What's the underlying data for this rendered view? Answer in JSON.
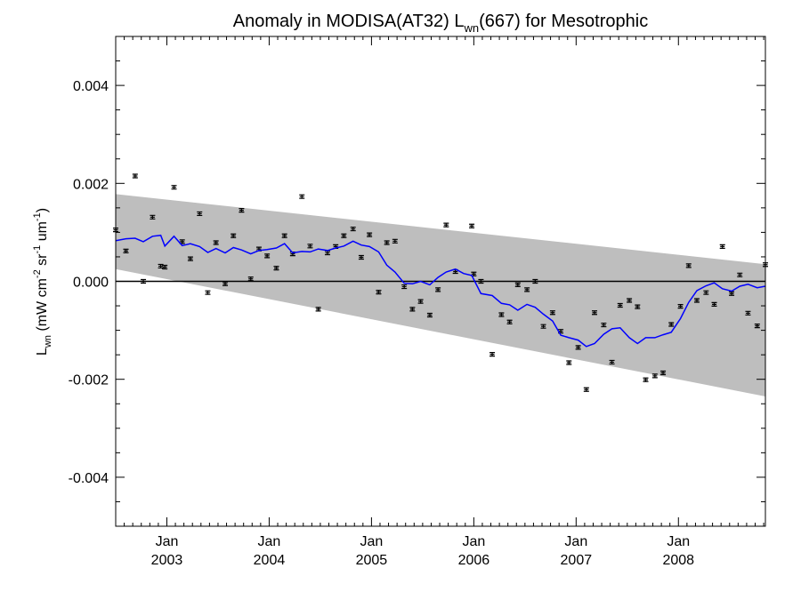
{
  "chart_data": {
    "type": "line",
    "title": {
      "prefix": "Anomaly in MODISA(AT32) L",
      "subscript": "wn",
      "suffix": "(667) for Mesotrophic"
    },
    "ylabel": {
      "L": "L",
      "wn": "wn",
      "open": " (mW cm",
      "sup1": "-2",
      "mid": " sr",
      "sup2": "-1",
      "um": " um",
      "sup3": "-1",
      "close": ")"
    },
    "xlim": [
      2002.5,
      2008.85
    ],
    "ylim": [
      -0.005,
      0.005
    ],
    "y_ticks": [
      {
        "value": -0.004,
        "label": "-0.004"
      },
      {
        "value": -0.002,
        "label": "-0.002"
      },
      {
        "value": 0.0,
        "label": "0.000"
      },
      {
        "value": 0.002,
        "label": "0.002"
      },
      {
        "value": 0.004,
        "label": "0.004"
      }
    ],
    "x_ticks": [
      {
        "value": 2003.0,
        "month": "Jan",
        "year": "2003"
      },
      {
        "value": 2004.0,
        "month": "Jan",
        "year": "2004"
      },
      {
        "value": 2005.0,
        "month": "Jan",
        "year": "2005"
      },
      {
        "value": 2006.0,
        "month": "Jan",
        "year": "2006"
      },
      {
        "value": 2007.0,
        "month": "Jan",
        "year": "2007"
      },
      {
        "value": 2008.0,
        "month": "Jan",
        "year": "2008"
      }
    ],
    "band": {
      "x": [
        2002.5,
        2008.85
      ],
      "upper": [
        0.00178,
        0.00035
      ],
      "lower": [
        0.00025,
        -0.00235
      ]
    },
    "reference_line": 0.0,
    "series": [
      {
        "kind": "points",
        "points": [
          [
            2002.5,
            0.00105
          ],
          [
            2002.6,
            0.00062
          ],
          [
            2002.69,
            0.00215
          ],
          [
            2002.77,
            0.0
          ],
          [
            2002.86,
            0.00131
          ],
          [
            2002.94,
            0.00031
          ],
          [
            2002.98,
            0.00029
          ],
          [
            2003.07,
            0.00192
          ],
          [
            2003.15,
            0.00081
          ],
          [
            2003.23,
            0.00046
          ],
          [
            2003.32,
            0.00138
          ],
          [
            2003.4,
            -0.00023
          ],
          [
            2003.48,
            0.00079
          ],
          [
            2003.57,
            -5e-05
          ],
          [
            2003.65,
            0.00093
          ],
          [
            2003.73,
            0.00145
          ],
          [
            2003.82,
            5e-05
          ],
          [
            2003.9,
            0.00066
          ],
          [
            2003.98,
            0.00052
          ],
          [
            2004.07,
            0.00027
          ],
          [
            2004.15,
            0.00093
          ],
          [
            2004.23,
            0.00056
          ],
          [
            2004.32,
            0.00173
          ],
          [
            2004.4,
            0.00072
          ],
          [
            2004.48,
            -0.00057
          ],
          [
            2004.57,
            0.00058
          ],
          [
            2004.65,
            0.00071
          ],
          [
            2004.73,
            0.00093
          ],
          [
            2004.82,
            0.00107
          ],
          [
            2004.9,
            0.00049
          ],
          [
            2004.98,
            0.00095
          ],
          [
            2005.07,
            -0.00022
          ],
          [
            2005.15,
            0.00079
          ],
          [
            2005.23,
            0.00082
          ],
          [
            2005.32,
            -0.00011
          ],
          [
            2005.4,
            -0.00057
          ],
          [
            2005.48,
            -0.00041
          ],
          [
            2005.57,
            -0.00069
          ],
          [
            2005.65,
            -0.00017
          ],
          [
            2005.73,
            0.00115
          ],
          [
            2005.82,
            0.0002
          ],
          [
            2005.98,
            0.00113
          ],
          [
            2006.0,
            0.00015
          ],
          [
            2006.07,
            0.0
          ],
          [
            2006.18,
            -0.00149
          ],
          [
            2006.27,
            -0.00068
          ],
          [
            2006.35,
            -0.00083
          ],
          [
            2006.43,
            -7e-05
          ],
          [
            2006.52,
            -0.00017
          ],
          [
            2006.6,
            0.0
          ],
          [
            2006.68,
            -0.00092
          ],
          [
            2006.77,
            -0.00064
          ],
          [
            2006.85,
            -0.00102
          ],
          [
            2006.93,
            -0.00166
          ],
          [
            2007.02,
            -0.00135
          ],
          [
            2007.1,
            -0.00221
          ],
          [
            2007.18,
            -0.00064
          ],
          [
            2007.27,
            -0.00089
          ],
          [
            2007.35,
            -0.00165
          ],
          [
            2007.43,
            -0.00049
          ],
          [
            2007.52,
            -0.00039
          ],
          [
            2007.6,
            -0.00052
          ],
          [
            2007.68,
            -0.00201
          ],
          [
            2007.77,
            -0.00193
          ],
          [
            2007.85,
            -0.00187
          ],
          [
            2007.93,
            -0.00088
          ],
          [
            2008.02,
            -0.00051
          ],
          [
            2008.1,
            0.00032
          ],
          [
            2008.18,
            -0.00039
          ],
          [
            2008.27,
            -0.00023
          ],
          [
            2008.35,
            -0.00047
          ],
          [
            2008.43,
            0.00071
          ],
          [
            2008.52,
            -0.00025
          ],
          [
            2008.6,
            0.00013
          ],
          [
            2008.68,
            -0.00065
          ],
          [
            2008.77,
            -0.00091
          ],
          [
            2008.85,
            0.00034
          ]
        ]
      },
      {
        "kind": "line",
        "color": "#0000ff",
        "points": [
          [
            2002.5,
            0.00083
          ],
          [
            2002.6,
            0.00087
          ],
          [
            2002.69,
            0.00088
          ],
          [
            2002.77,
            0.00081
          ],
          [
            2002.86,
            0.00092
          ],
          [
            2002.94,
            0.00094
          ],
          [
            2002.98,
            0.00072
          ],
          [
            2003.07,
            0.00092
          ],
          [
            2003.15,
            0.00073
          ],
          [
            2003.23,
            0.00077
          ],
          [
            2003.32,
            0.00071
          ],
          [
            2003.4,
            0.00059
          ],
          [
            2003.48,
            0.00067
          ],
          [
            2003.57,
            0.00058
          ],
          [
            2003.65,
            0.00069
          ],
          [
            2003.73,
            0.00064
          ],
          [
            2003.82,
            0.00056
          ],
          [
            2003.9,
            0.00063
          ],
          [
            2003.98,
            0.00065
          ],
          [
            2004.07,
            0.00068
          ],
          [
            2004.15,
            0.00077
          ],
          [
            2004.23,
            0.00058
          ],
          [
            2004.32,
            0.00061
          ],
          [
            2004.4,
            0.0006
          ],
          [
            2004.48,
            0.00066
          ],
          [
            2004.57,
            0.00063
          ],
          [
            2004.65,
            0.00068
          ],
          [
            2004.73,
            0.00072
          ],
          [
            2004.82,
            0.00082
          ],
          [
            2004.9,
            0.00074
          ],
          [
            2004.98,
            0.00071
          ],
          [
            2005.07,
            0.0006
          ],
          [
            2005.15,
            0.00033
          ],
          [
            2005.23,
            0.00019
          ],
          [
            2005.32,
            -4e-05
          ],
          [
            2005.4,
            -5e-05
          ],
          [
            2005.48,
            0.0
          ],
          [
            2005.57,
            -7e-05
          ],
          [
            2005.65,
            8e-05
          ],
          [
            2005.73,
            0.00019
          ],
          [
            2005.82,
            0.00025
          ],
          [
            2005.9,
            0.00016
          ],
          [
            2005.98,
            0.00012
          ],
          [
            2006.07,
            -0.00025
          ],
          [
            2006.18,
            -0.00029
          ],
          [
            2006.27,
            -0.00045
          ],
          [
            2006.35,
            -0.00048
          ],
          [
            2006.43,
            -0.00059
          ],
          [
            2006.52,
            -0.00047
          ],
          [
            2006.6,
            -0.00053
          ],
          [
            2006.68,
            -0.00067
          ],
          [
            2006.77,
            -0.00081
          ],
          [
            2006.85,
            -0.0011
          ],
          [
            2006.93,
            -0.00115
          ],
          [
            2007.02,
            -0.0012
          ],
          [
            2007.1,
            -0.00133
          ],
          [
            2007.18,
            -0.00127
          ],
          [
            2007.27,
            -0.00108
          ],
          [
            2007.35,
            -0.00097
          ],
          [
            2007.43,
            -0.00095
          ],
          [
            2007.52,
            -0.00115
          ],
          [
            2007.6,
            -0.00127
          ],
          [
            2007.68,
            -0.00115
          ],
          [
            2007.77,
            -0.00115
          ],
          [
            2007.85,
            -0.00109
          ],
          [
            2007.93,
            -0.00104
          ],
          [
            2008.02,
            -0.00076
          ],
          [
            2008.1,
            -0.00043
          ],
          [
            2008.18,
            -0.00019
          ],
          [
            2008.27,
            -9e-05
          ],
          [
            2008.35,
            -3e-05
          ],
          [
            2008.43,
            -0.00015
          ],
          [
            2008.52,
            -0.0002
          ],
          [
            2008.6,
            -0.0001
          ],
          [
            2008.68,
            -6e-05
          ],
          [
            2008.77,
            -0.00013
          ],
          [
            2008.85,
            -0.0001
          ]
        ]
      }
    ]
  }
}
